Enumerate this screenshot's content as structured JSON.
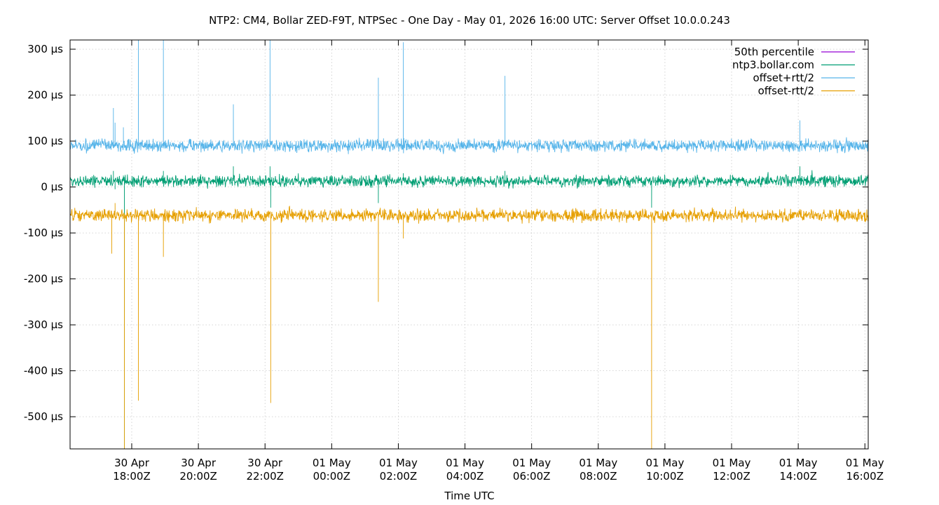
{
  "chart_data": {
    "type": "line",
    "title": "NTP2: CM4, Bollar ZED-F9T, NTPSec - One Day - May 01, 2026 16:00 UTC: Server Offset 10.0.0.243",
    "xlabel": "Time UTC",
    "ylabel": "",
    "y_unit": "µs",
    "ylim": [
      -570,
      320
    ],
    "y_ticks": [
      {
        "value": 300,
        "label": "300 µs"
      },
      {
        "value": 200,
        "label": "200 µs"
      },
      {
        "value": 100,
        "label": "100 µs"
      },
      {
        "value": 0,
        "label": "0 µs"
      },
      {
        "value": -100,
        "label": "-100 µs"
      },
      {
        "value": -200,
        "label": "-200 µs"
      },
      {
        "value": -300,
        "label": "-300 µs"
      },
      {
        "value": -400,
        "label": "-400 µs"
      },
      {
        "value": -500,
        "label": "-500 µs"
      }
    ],
    "xlim_hours": [
      16.15,
      40.1
    ],
    "x_ticks": [
      {
        "hour": 18,
        "line1": "30 Apr",
        "line2": "18:00Z"
      },
      {
        "hour": 20,
        "line1": "30 Apr",
        "line2": "20:00Z"
      },
      {
        "hour": 22,
        "line1": "30 Apr",
        "line2": "22:00Z"
      },
      {
        "hour": 24,
        "line1": "01 May",
        "line2": "00:00Z"
      },
      {
        "hour": 26,
        "line1": "01 May",
        "line2": "02:00Z"
      },
      {
        "hour": 28,
        "line1": "01 May",
        "line2": "04:00Z"
      },
      {
        "hour": 30,
        "line1": "01 May",
        "line2": "06:00Z"
      },
      {
        "hour": 32,
        "line1": "01 May",
        "line2": "08:00Z"
      },
      {
        "hour": 34,
        "line1": "01 May",
        "line2": "10:00Z"
      },
      {
        "hour": 36,
        "line1": "01 May",
        "line2": "12:00Z"
      },
      {
        "hour": 38,
        "line1": "01 May",
        "line2": "14:00Z"
      },
      {
        "hour": 40,
        "line1": "01 May",
        "line2": "16:00Z"
      }
    ],
    "grid": true,
    "legend_position": "top-right",
    "series": [
      {
        "name": "50th percentile",
        "color": "#9400d3",
        "values": []
      },
      {
        "name": "ntp3.bollar.com",
        "color": "#009e73",
        "baseline": 13,
        "noise": 10,
        "spikes": [
          {
            "hour": 17.45,
            "value": 35
          },
          {
            "hour": 17.5,
            "value": -5
          },
          {
            "hour": 17.75,
            "value": 25
          },
          {
            "hour": 17.78,
            "value": -570
          },
          {
            "hour": 18.2,
            "value": 25
          },
          {
            "hour": 18.95,
            "value": 35
          },
          {
            "hour": 21.05,
            "value": 45
          },
          {
            "hour": 22.15,
            "value": 45
          },
          {
            "hour": 22.17,
            "value": -45
          },
          {
            "hour": 25.4,
            "value": -35
          },
          {
            "hour": 26.15,
            "value": 30
          },
          {
            "hour": 29.2,
            "value": 35
          },
          {
            "hour": 33.6,
            "value": -45
          },
          {
            "hour": 38.05,
            "value": 45
          }
        ]
      },
      {
        "name": "offset+rtt/2",
        "color": "#56b4e9",
        "baseline": 90,
        "noise": 11,
        "spikes": [
          {
            "hour": 17.45,
            "value": 172
          },
          {
            "hour": 17.5,
            "value": 140
          },
          {
            "hour": 17.75,
            "value": 130
          },
          {
            "hour": 18.2,
            "value": 320
          },
          {
            "hour": 18.95,
            "value": 320
          },
          {
            "hour": 21.05,
            "value": 180
          },
          {
            "hour": 22.15,
            "value": 320
          },
          {
            "hour": 25.4,
            "value": 238
          },
          {
            "hour": 26.15,
            "value": 315
          },
          {
            "hour": 29.2,
            "value": 242
          },
          {
            "hour": 38.05,
            "value": 145
          }
        ]
      },
      {
        "name": "offset-rtt/2",
        "color": "#e69f00",
        "baseline": -62,
        "noise": 11,
        "spikes": [
          {
            "hour": 17.4,
            "value": -145
          },
          {
            "hour": 17.5,
            "value": -35
          },
          {
            "hour": 17.78,
            "value": -570
          },
          {
            "hour": 18.2,
            "value": -465
          },
          {
            "hour": 18.95,
            "value": -152
          },
          {
            "hour": 22.17,
            "value": -470
          },
          {
            "hour": 25.4,
            "value": -250
          },
          {
            "hour": 26.15,
            "value": -112
          },
          {
            "hour": 33.6,
            "value": -570
          }
        ]
      }
    ]
  }
}
